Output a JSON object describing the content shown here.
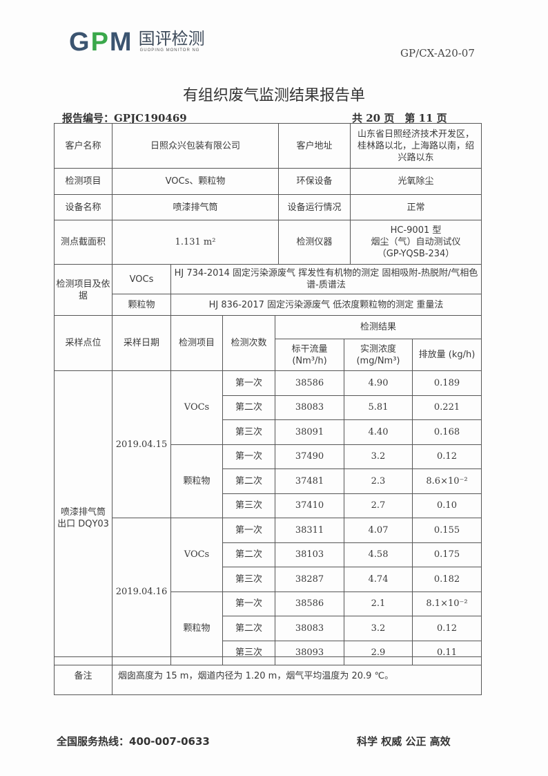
{
  "header": {
    "logo_text": "GPM",
    "logo_cn": "国评检测",
    "logo_en": "GUOPING MONITOR NG",
    "doc_code": "GP/CX-A20-07",
    "colors": {
      "logo_g": "#3b5470",
      "logo_p": "#3aa84b",
      "logo_m": "#3b5470"
    }
  },
  "title": "有组织废气监测结果报告单",
  "report_no": "报告编号：GPJC190469",
  "pages": "共 20 页　第 11 页",
  "info": {
    "client_name_label": "客户名称",
    "client_name": "日照众兴包装有限公司",
    "client_addr_label": "客户地址",
    "client_addr": "山东省日照经济技术开发区，桂林路以北，上海路以南，绍兴路以东",
    "item_label": "检测项目",
    "item": "VOCs、颗粒物",
    "env_label": "环保设备",
    "env": "光氧除尘",
    "equip_label": "设备名称",
    "equip": "喷漆排气筒",
    "run_label": "设备运行情况",
    "run": "正常",
    "area_label": "测点截面积",
    "area": "1.131 m²",
    "instr_label": "检测仪器",
    "instr_1": "HC-9001 型",
    "instr_2": "烟尘（气）自动测试仪",
    "instr_3": "（GP-YQSB-234）"
  },
  "methods": {
    "label": "检测项目及依据",
    "rows": [
      {
        "item": "VOCs",
        "method": "HJ 734-2014 固定污染源废气 挥发性有机物的测定 固相吸附-热脱附/气相色谱-质谱法"
      },
      {
        "item": "颗粒物",
        "method": "HJ 836-2017 固定污染源废气 低浓度颗粒物的测定 重量法"
      }
    ]
  },
  "results": {
    "headers": {
      "point": "采样点位",
      "date": "采样日期",
      "item": "检测项目",
      "count": "检测次数",
      "result": "检测结果",
      "flow": "标干流量 (Nm³/h)",
      "conc": "实测浓度 (mg/Nm³)",
      "emission": "排放量 (kg/h)"
    },
    "point": "喷漆排气筒 出口 DQY03",
    "dates": [
      {
        "date": "2019.04.15",
        "groups": [
          {
            "item": "VOCs",
            "rows": [
              [
                "第一次",
                "38586",
                "4.90",
                "0.189"
              ],
              [
                "第二次",
                "38083",
                "5.81",
                "0.221"
              ],
              [
                "第三次",
                "38091",
                "4.40",
                "0.168"
              ]
            ]
          },
          {
            "item": "颗粒物",
            "rows": [
              [
                "第一次",
                "37490",
                "3.2",
                "0.12"
              ],
              [
                "第二次",
                "37481",
                "2.3",
                "8.6×10⁻²"
              ],
              [
                "第三次",
                "37410",
                "2.7",
                "0.10"
              ]
            ]
          }
        ]
      },
      {
        "date": "2019.04.16",
        "groups": [
          {
            "item": "VOCs",
            "rows": [
              [
                "第一次",
                "38311",
                "4.07",
                "0.155"
              ],
              [
                "第二次",
                "38103",
                "4.58",
                "0.175"
              ],
              [
                "第三次",
                "38287",
                "4.74",
                "0.182"
              ]
            ]
          },
          {
            "item": "颗粒物",
            "rows": [
              [
                "第一次",
                "38586",
                "2.1",
                "8.1×10⁻²"
              ],
              [
                "第二次",
                "38083",
                "3.2",
                "0.12"
              ],
              [
                "第三次",
                "38093",
                "2.9",
                "0.11"
              ]
            ]
          }
        ]
      }
    ]
  },
  "remark": {
    "label": "备注",
    "text": "烟囱高度为 15 m，烟道内径为 1.20 m，烟气平均温度为 20.9 ℃。"
  },
  "footer": {
    "hotline": "全国服务热线：400-007-0633",
    "slogan": "科学 权威 公正 高效"
  }
}
